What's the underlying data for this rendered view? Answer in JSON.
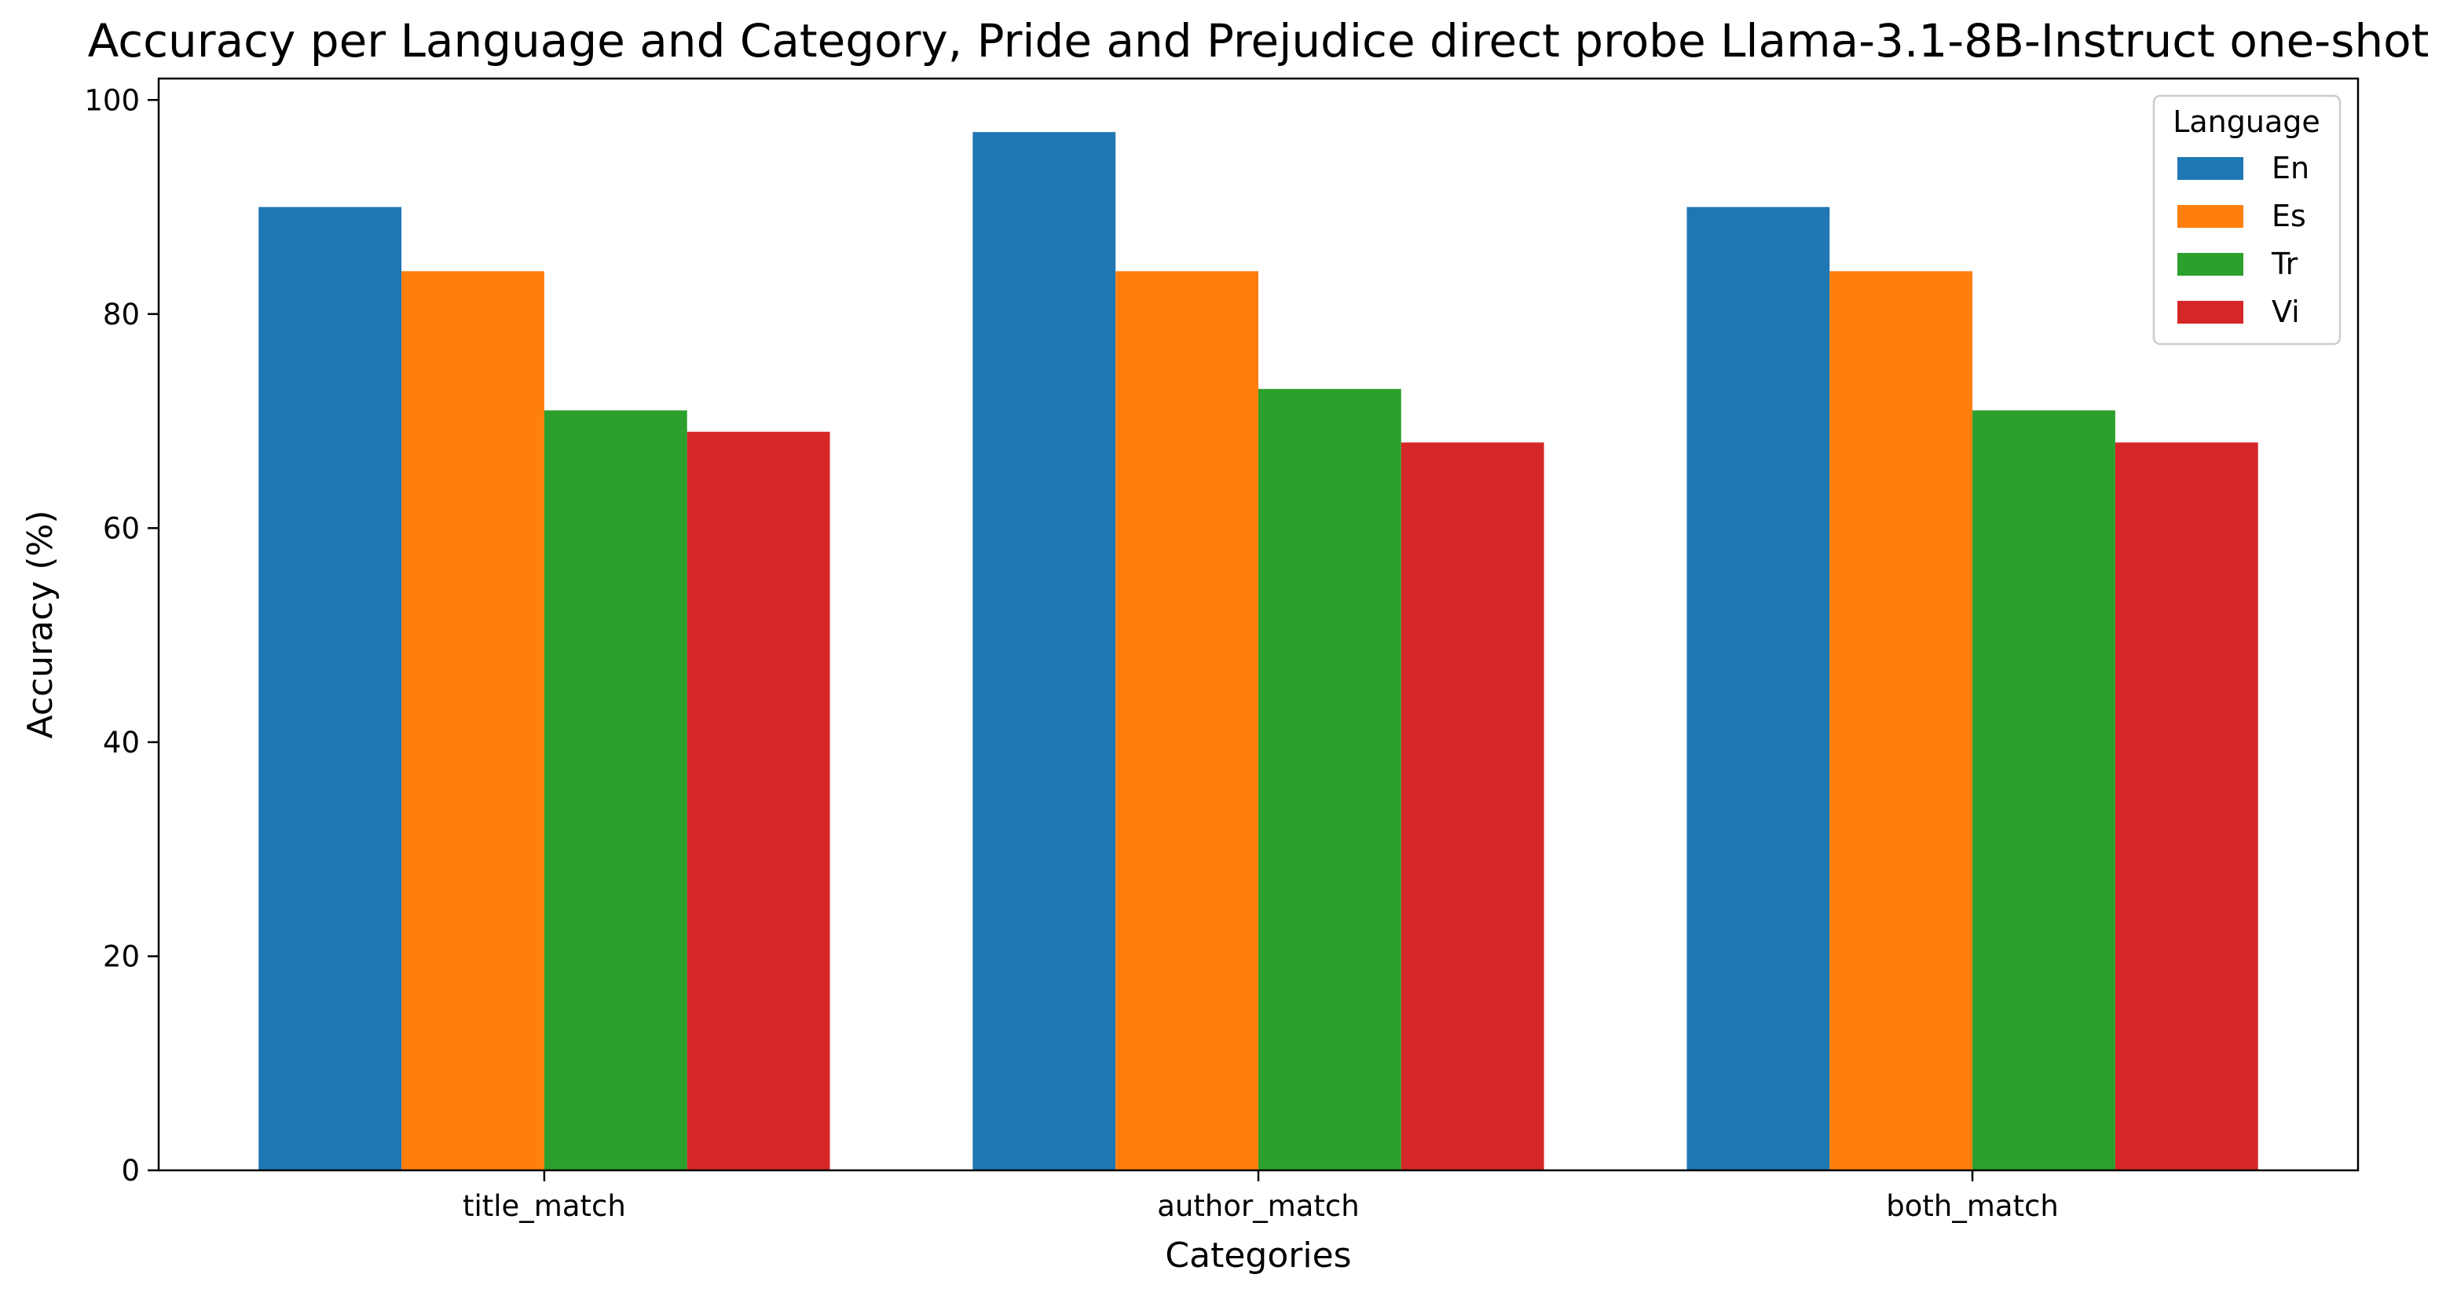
{
  "chart_data": {
    "type": "bar",
    "title": "Accuracy per Language and Category, Pride and Prejudice direct probe Llama-3.1-8B-Instruct one-shot",
    "xlabel": "Categories",
    "ylabel": "Accuracy (%)",
    "ylim": [
      0,
      102
    ],
    "yticks": [
      0,
      20,
      40,
      60,
      80,
      100
    ],
    "grid": false,
    "categories": [
      "title_match",
      "author_match",
      "both_match"
    ],
    "legend": {
      "title": "Language",
      "placement": "top-right"
    },
    "series": [
      {
        "name": "En",
        "color": "#1f77b4",
        "values": [
          90,
          97,
          90
        ]
      },
      {
        "name": "Es",
        "color": "#ff7f0e",
        "values": [
          84,
          84,
          84
        ]
      },
      {
        "name": "Tr",
        "color": "#2ca02c",
        "values": [
          71,
          73,
          71
        ]
      },
      {
        "name": "Vi",
        "color": "#d62728",
        "values": [
          69,
          68,
          68
        ]
      }
    ]
  }
}
